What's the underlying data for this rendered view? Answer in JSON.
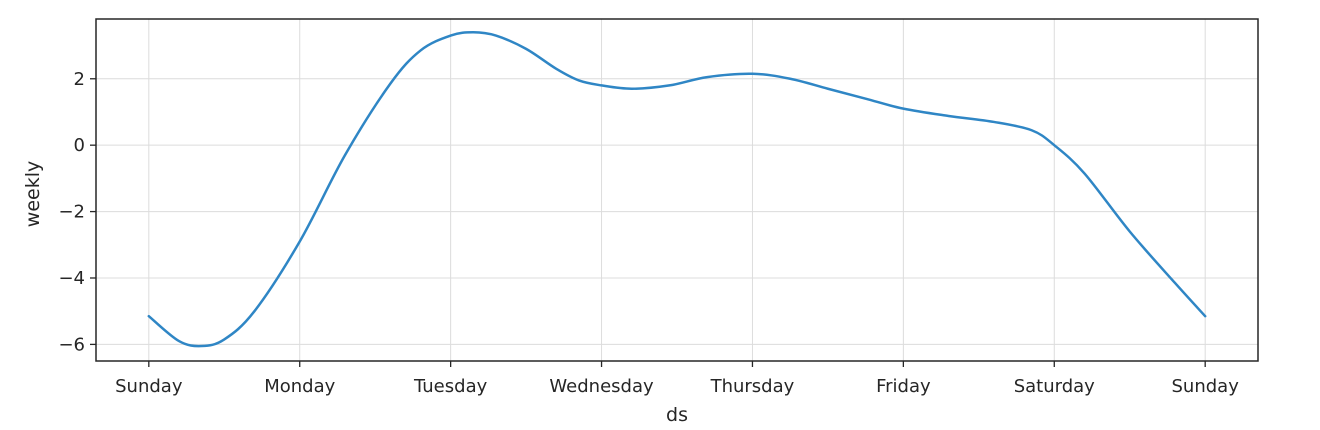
{
  "chart_data": {
    "type": "line",
    "title": "",
    "xlabel": "ds",
    "ylabel": "weekly",
    "categories": [
      "Sunday",
      "Monday",
      "Tuesday",
      "Wednesday",
      "Thursday",
      "Friday",
      "Saturday",
      "Sunday"
    ],
    "y_ticks": [
      2,
      0,
      -2,
      -4,
      -6
    ],
    "y_tick_labels": [
      "2",
      "0",
      "−2",
      "−4",
      "−6"
    ],
    "ylim": [
      -6.5,
      3.8
    ],
    "xlim": [
      -0.35,
      7.35
    ],
    "grid": true,
    "color": "#2f86c5",
    "series": [
      {
        "x": [
          0,
          0.2,
          0.35,
          0.5,
          0.7,
          1.0,
          1.3,
          1.6,
          1.8,
          2.0,
          2.15,
          2.3,
          2.5,
          2.7,
          2.85,
          3.0,
          3.2,
          3.45,
          3.7,
          4.0,
          4.25,
          4.5,
          4.75,
          5.0,
          5.3,
          5.6,
          5.85,
          6.0,
          6.2,
          6.5,
          6.8,
          7.0
        ],
        "y": [
          -5.15,
          -5.9,
          -6.05,
          -5.85,
          -5.0,
          -2.9,
          -0.3,
          1.85,
          2.85,
          3.3,
          3.4,
          3.3,
          2.9,
          2.3,
          1.95,
          1.8,
          1.7,
          1.8,
          2.05,
          2.15,
          2.0,
          1.7,
          1.4,
          1.1,
          0.88,
          0.7,
          0.45,
          0.0,
          -0.85,
          -2.6,
          -4.15,
          -5.15
        ]
      }
    ]
  }
}
